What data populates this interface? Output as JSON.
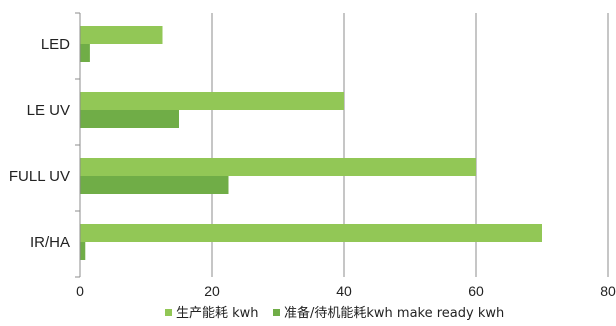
{
  "chart_data": {
    "type": "bar",
    "orientation": "horizontal",
    "categories": [
      "LED",
      "LE UV",
      "FULL UV",
      "IR/HA"
    ],
    "series": [
      {
        "name": "生产能耗 kwh",
        "values": [
          12.5,
          40,
          60,
          70
        ],
        "color": "#92c756"
      },
      {
        "name": "准备/待机能耗kwh make ready kwh",
        "values": [
          1.5,
          15,
          22.5,
          0.8
        ],
        "color": "#70ad47"
      }
    ],
    "x_ticks": [
      "0",
      "20",
      "40",
      "60",
      "80"
    ],
    "xlim": [
      0,
      80
    ],
    "grid": "vertical",
    "legend_position": "bottom"
  }
}
